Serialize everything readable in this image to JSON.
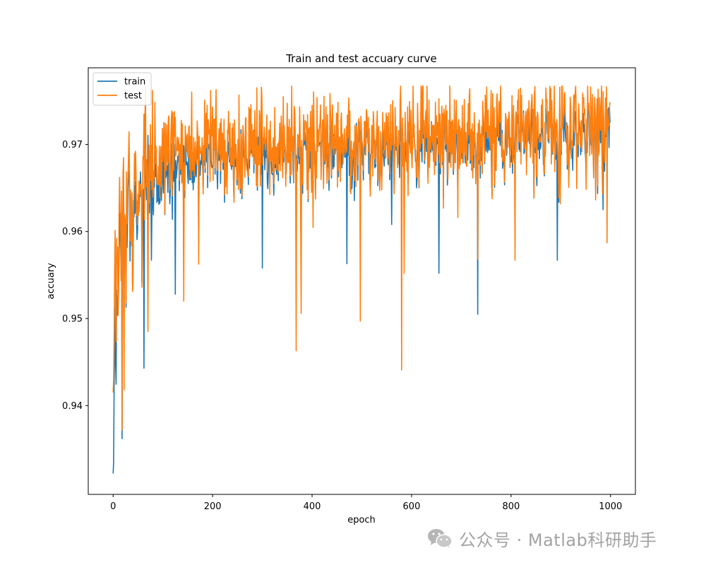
{
  "chart_data": {
    "type": "line",
    "title": "Train and test accuary curve",
    "xlabel": "epoch",
    "ylabel": "accuary",
    "xlim": [
      -50,
      1050
    ],
    "ylim": [
      0.9298,
      0.9788
    ],
    "xticks": [
      0,
      200,
      400,
      600,
      800,
      1000
    ],
    "yticks": [
      0.94,
      0.95,
      0.96,
      0.97
    ],
    "ytick_labels": [
      "0.94",
      "0.95",
      "0.96",
      "0.97"
    ],
    "legend_position": "upper left",
    "n_points": 1000,
    "series": [
      {
        "name": "train",
        "color": "#1f77b4",
        "baseline_anchors": [
          [
            0,
            0.9322
          ],
          [
            4,
            0.945
          ],
          [
            10,
            0.955
          ],
          [
            20,
            0.96
          ],
          [
            40,
            0.9635
          ],
          [
            80,
            0.966
          ],
          [
            150,
            0.968
          ],
          [
            300,
            0.969
          ],
          [
            500,
            0.9695
          ],
          [
            700,
            0.9705
          ],
          [
            1000,
            0.9715
          ]
        ],
        "min_points": [
          [
            0,
            0.9322
          ],
          [
            18,
            0.9362
          ],
          [
            62,
            0.9443
          ],
          [
            77,
            0.9567
          ],
          [
            125,
            0.9528
          ],
          [
            300,
            0.9558
          ],
          [
            470,
            0.9563
          ],
          [
            560,
            0.9608
          ],
          [
            655,
            0.9552
          ],
          [
            733,
            0.9505
          ],
          [
            893,
            0.9567
          ],
          [
            985,
            0.9625
          ],
          [
            1000,
            0.9725
          ]
        ]
      },
      {
        "name": "test",
        "color": "#ff7f0e",
        "baseline_anchors": [
          [
            0,
            0.9415
          ],
          [
            4,
            0.951
          ],
          [
            10,
            0.958
          ],
          [
            20,
            0.9625
          ],
          [
            40,
            0.9655
          ],
          [
            80,
            0.968
          ],
          [
            150,
            0.9695
          ],
          [
            300,
            0.97
          ],
          [
            500,
            0.9705
          ],
          [
            700,
            0.9718
          ],
          [
            1000,
            0.9728
          ]
        ],
        "min_points": [
          [
            0,
            0.9415
          ],
          [
            18,
            0.9372
          ],
          [
            22,
            0.9418
          ],
          [
            70,
            0.9485
          ],
          [
            142,
            0.952
          ],
          [
            368,
            0.9463
          ],
          [
            378,
            0.9506
          ],
          [
            497,
            0.9497
          ],
          [
            580,
            0.9441
          ],
          [
            585,
            0.9552
          ],
          [
            733,
            0.9568
          ],
          [
            808,
            0.9567
          ],
          [
            993,
            0.9587
          ]
        ],
        "max_points": [
          [
            60,
            0.9686
          ],
          [
            200,
            0.9743
          ],
          [
            400,
            0.9745
          ],
          [
            620,
            0.9756
          ],
          [
            760,
            0.9762
          ],
          [
            960,
            0.9766
          ]
        ]
      }
    ]
  },
  "watermark": {
    "icon": "wechat-icon",
    "text": "公众号 · Matlab科研助手"
  }
}
